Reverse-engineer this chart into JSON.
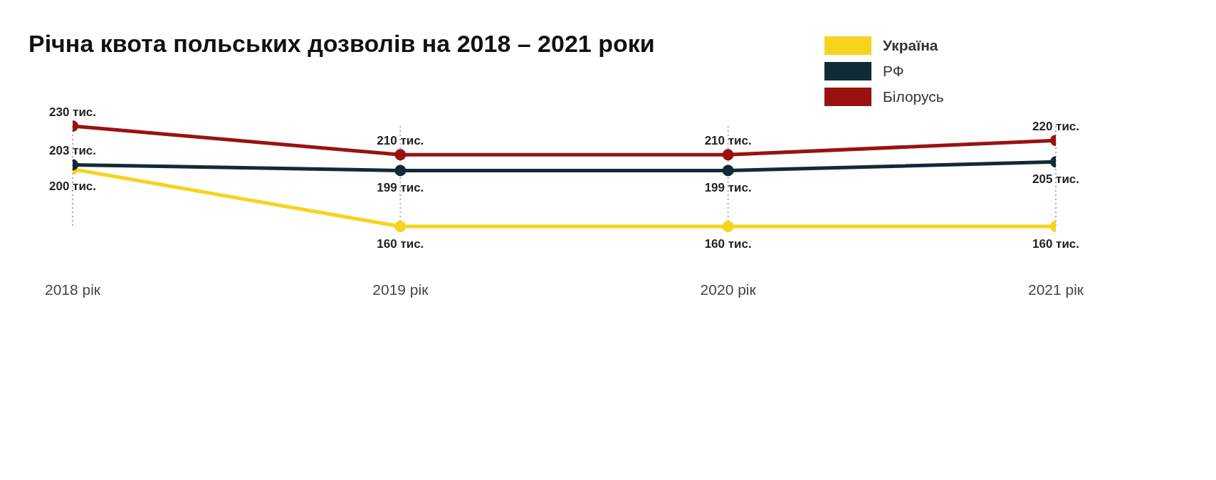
{
  "chart_data": {
    "type": "line",
    "title": "Річна квота польських дозволів на 2018 – 2021 роки",
    "categories": [
      "2018 рік",
      "2019 рік",
      "2020 рік",
      "2021 рік"
    ],
    "series": [
      {
        "name": "Україна",
        "color": "#f7d31e",
        "values": [
          200,
          160,
          160,
          160
        ],
        "value_labels": [
          "200 тис.",
          "160 тис.",
          "160 тис.",
          "160 тис."
        ]
      },
      {
        "name": "РФ",
        "color": "#0f2b36",
        "values": [
          203,
          199,
          199,
          205
        ],
        "value_labels": [
          "203 тис.",
          "199 тис.",
          "199 тис.",
          "205 тис."
        ]
      },
      {
        "name": "Білорусь",
        "color": "#9a1111",
        "values": [
          230,
          210,
          210,
          220
        ],
        "value_labels": [
          "230 тис.",
          "210 тис.",
          "210 тис.",
          "220 тис."
        ]
      }
    ],
    "legend": "top right",
    "grid": "x",
    "marker": "circle",
    "line_style": "solid"
  }
}
